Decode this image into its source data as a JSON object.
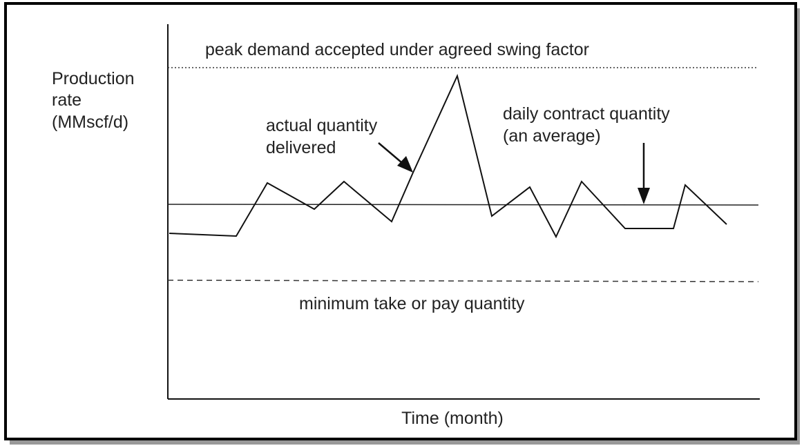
{
  "axis_labels": {
    "y": [
      "Production",
      "rate",
      "(MMscf/d)"
    ],
    "x": "Time (month)"
  },
  "annotations": {
    "peak": "peak demand accepted under agreed swing factor",
    "actual": [
      "actual quantity",
      "delivered"
    ],
    "contract": [
      "daily contract quantity",
      "(an average)"
    ],
    "minimum": "minimum take or pay quantity"
  }
}
